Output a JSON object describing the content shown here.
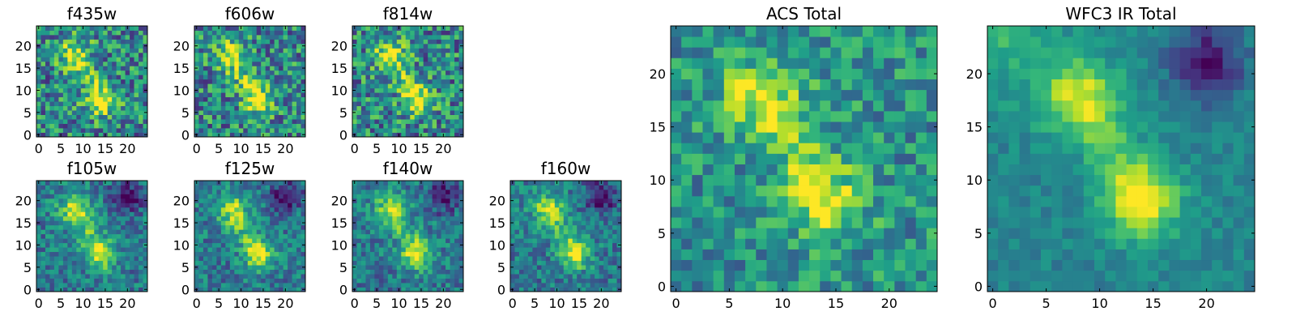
{
  "chart_data": [
    {
      "type": "heatmap",
      "title": "f435w",
      "x_ticks": [
        0,
        5,
        10,
        15,
        20
      ],
      "y_ticks": [
        0,
        5,
        10,
        15,
        20
      ],
      "xlim": [
        0,
        25
      ],
      "ylim": [
        0,
        25
      ],
      "grid": false,
      "colormap": "viridis"
    },
    {
      "type": "heatmap",
      "title": "f606w",
      "x_ticks": [
        0,
        5,
        10,
        15,
        20
      ],
      "y_ticks": [
        0,
        5,
        10,
        15,
        20
      ],
      "xlim": [
        0,
        25
      ],
      "ylim": [
        0,
        25
      ],
      "grid": false,
      "colormap": "viridis"
    },
    {
      "type": "heatmap",
      "title": "f814w",
      "x_ticks": [
        0,
        5,
        10,
        15,
        20
      ],
      "y_ticks": [
        0,
        5,
        10,
        15,
        20
      ],
      "xlim": [
        0,
        25
      ],
      "ylim": [
        0,
        25
      ],
      "grid": false,
      "colormap": "viridis"
    },
    {
      "type": "heatmap",
      "title": "f105w",
      "x_ticks": [
        0,
        5,
        10,
        15,
        20
      ],
      "y_ticks": [
        0,
        5,
        10,
        15,
        20
      ],
      "xlim": [
        0,
        25
      ],
      "ylim": [
        0,
        25
      ],
      "grid": false,
      "colormap": "viridis"
    },
    {
      "type": "heatmap",
      "title": "f125w",
      "x_ticks": [
        0,
        5,
        10,
        15,
        20
      ],
      "y_ticks": [
        0,
        5,
        10,
        15,
        20
      ],
      "xlim": [
        0,
        25
      ],
      "ylim": [
        0,
        25
      ],
      "grid": false,
      "colormap": "viridis"
    },
    {
      "type": "heatmap",
      "title": "f140w",
      "x_ticks": [
        0,
        5,
        10,
        15,
        20
      ],
      "y_ticks": [
        0,
        5,
        10,
        15,
        20
      ],
      "xlim": [
        0,
        25
      ],
      "ylim": [
        0,
        25
      ],
      "grid": false,
      "colormap": "viridis"
    },
    {
      "type": "heatmap",
      "title": "f160w",
      "x_ticks": [
        0,
        5,
        10,
        15,
        20
      ],
      "y_ticks": [
        0,
        5,
        10,
        15,
        20
      ],
      "xlim": [
        0,
        25
      ],
      "ylim": [
        0,
        25
      ],
      "grid": false,
      "colormap": "viridis"
    },
    {
      "type": "heatmap",
      "title": "ACS Total",
      "x_ticks": [
        0,
        5,
        10,
        15,
        20
      ],
      "y_ticks": [
        0,
        5,
        10,
        15,
        20
      ],
      "xlim": [
        0,
        25
      ],
      "ylim": [
        0,
        25
      ],
      "grid": false,
      "colormap": "viridis"
    },
    {
      "type": "heatmap",
      "title": "WFC3 IR Total",
      "x_ticks": [
        0,
        5,
        10,
        15,
        20
      ],
      "y_ticks": [
        0,
        5,
        10,
        15,
        20
      ],
      "xlim": [
        0,
        25
      ],
      "ylim": [
        0,
        25
      ],
      "grid": false,
      "colormap": "viridis"
    }
  ]
}
